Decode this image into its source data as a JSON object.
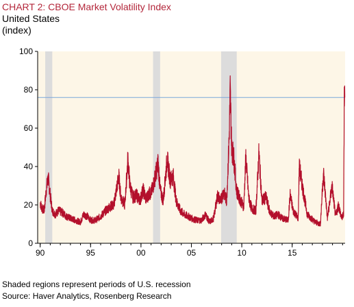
{
  "header": {
    "title": "CHART 2: CBOE Market Volatility Index",
    "subtitle": "United States",
    "unit": "(index)"
  },
  "footer": {
    "note": "Shaded regions represent periods of U.S. recession",
    "source": "Source: Haver Analytics, Rosenberg Research"
  },
  "colors": {
    "series": "#b3102c",
    "reference_line": "#7aa7d9",
    "plot_background": "#fdf6e7",
    "recession_shade": "#dcdcdc",
    "title": "#b3263a"
  },
  "chart_data": {
    "type": "line",
    "title": "CHART 2: CBOE Market Volatility Index",
    "subtitle": "United States",
    "ylabel": "(index)",
    "xlabel": "",
    "xlim": [
      1989.75,
      2020.25
    ],
    "ylim": [
      0,
      100
    ],
    "yticks": [
      0,
      20,
      40,
      60,
      80,
      100
    ],
    "xtick_values": [
      1990,
      1995,
      2000,
      2005,
      2010,
      2015
    ],
    "xtick_labels": [
      "90",
      "95",
      "00",
      "05",
      "10",
      "15"
    ],
    "reference_line": {
      "y": 76
    },
    "recessions": [
      {
        "start": 1990.5,
        "end": 1991.2
      },
      {
        "start": 2001.2,
        "end": 2001.9
      },
      {
        "start": 2007.95,
        "end": 2009.5
      }
    ],
    "grid": false,
    "legend": "none",
    "series": [
      {
        "values": [
          [
            1990.0,
            21
          ],
          [
            1990.2,
            18
          ],
          [
            1990.4,
            17
          ],
          [
            1990.6,
            28
          ],
          [
            1990.8,
            34
          ],
          [
            1991.0,
            25
          ],
          [
            1991.2,
            17
          ],
          [
            1991.5,
            15
          ],
          [
            1991.8,
            17
          ],
          [
            1992.2,
            16
          ],
          [
            1992.6,
            14
          ],
          [
            1993.0,
            13
          ],
          [
            1993.5,
            12
          ],
          [
            1994.0,
            11
          ],
          [
            1994.3,
            15
          ],
          [
            1994.7,
            14
          ],
          [
            1995.0,
            12
          ],
          [
            1995.5,
            12
          ],
          [
            1996.0,
            14
          ],
          [
            1996.5,
            17
          ],
          [
            1996.9,
            19
          ],
          [
            1997.3,
            20
          ],
          [
            1997.8,
            35
          ],
          [
            1998.0,
            24
          ],
          [
            1998.4,
            20
          ],
          [
            1998.7,
            44
          ],
          [
            1998.9,
            30
          ],
          [
            1999.2,
            24
          ],
          [
            1999.6,
            25
          ],
          [
            1999.9,
            22
          ],
          [
            2000.2,
            28
          ],
          [
            2000.5,
            23
          ],
          [
            2000.8,
            26
          ],
          [
            2001.0,
            26
          ],
          [
            2001.3,
            32
          ],
          [
            2001.7,
            42
          ],
          [
            2001.9,
            28
          ],
          [
            2002.2,
            22
          ],
          [
            2002.6,
            44
          ],
          [
            2002.9,
            33
          ],
          [
            2003.2,
            35
          ],
          [
            2003.5,
            22
          ],
          [
            2003.9,
            17
          ],
          [
            2004.3,
            15
          ],
          [
            2004.7,
            14
          ],
          [
            2005.0,
            13
          ],
          [
            2005.5,
            12
          ],
          [
            2006.0,
            12
          ],
          [
            2006.4,
            15
          ],
          [
            2006.8,
            11
          ],
          [
            2007.2,
            13
          ],
          [
            2007.6,
            25
          ],
          [
            2007.9,
            22
          ],
          [
            2008.2,
            27
          ],
          [
            2008.5,
            22
          ],
          [
            2008.75,
            55
          ],
          [
            2008.85,
            80
          ],
          [
            2009.0,
            50
          ],
          [
            2009.2,
            45
          ],
          [
            2009.5,
            27
          ],
          [
            2009.9,
            22
          ],
          [
            2010.2,
            19
          ],
          [
            2010.4,
            45
          ],
          [
            2010.7,
            23
          ],
          [
            2011.0,
            18
          ],
          [
            2011.4,
            17
          ],
          [
            2011.7,
            47
          ],
          [
            2012.0,
            22
          ],
          [
            2012.4,
            24
          ],
          [
            2012.8,
            16
          ],
          [
            2013.2,
            14
          ],
          [
            2013.6,
            15
          ],
          [
            2014.0,
            13
          ],
          [
            2014.6,
            12
          ],
          [
            2014.8,
            25
          ],
          [
            2015.1,
            17
          ],
          [
            2015.6,
            13
          ],
          [
            2015.7,
            40
          ],
          [
            2016.1,
            27
          ],
          [
            2016.5,
            15
          ],
          [
            2016.9,
            13
          ],
          [
            2017.3,
            11
          ],
          [
            2017.8,
            10
          ],
          [
            2018.1,
            37
          ],
          [
            2018.5,
            13
          ],
          [
            2018.95,
            30
          ],
          [
            2019.3,
            14
          ],
          [
            2019.6,
            20
          ],
          [
            2019.9,
            13
          ],
          [
            2020.1,
            15
          ],
          [
            2020.17,
            82
          ],
          [
            2020.22,
            76
          ]
        ]
      }
    ]
  }
}
